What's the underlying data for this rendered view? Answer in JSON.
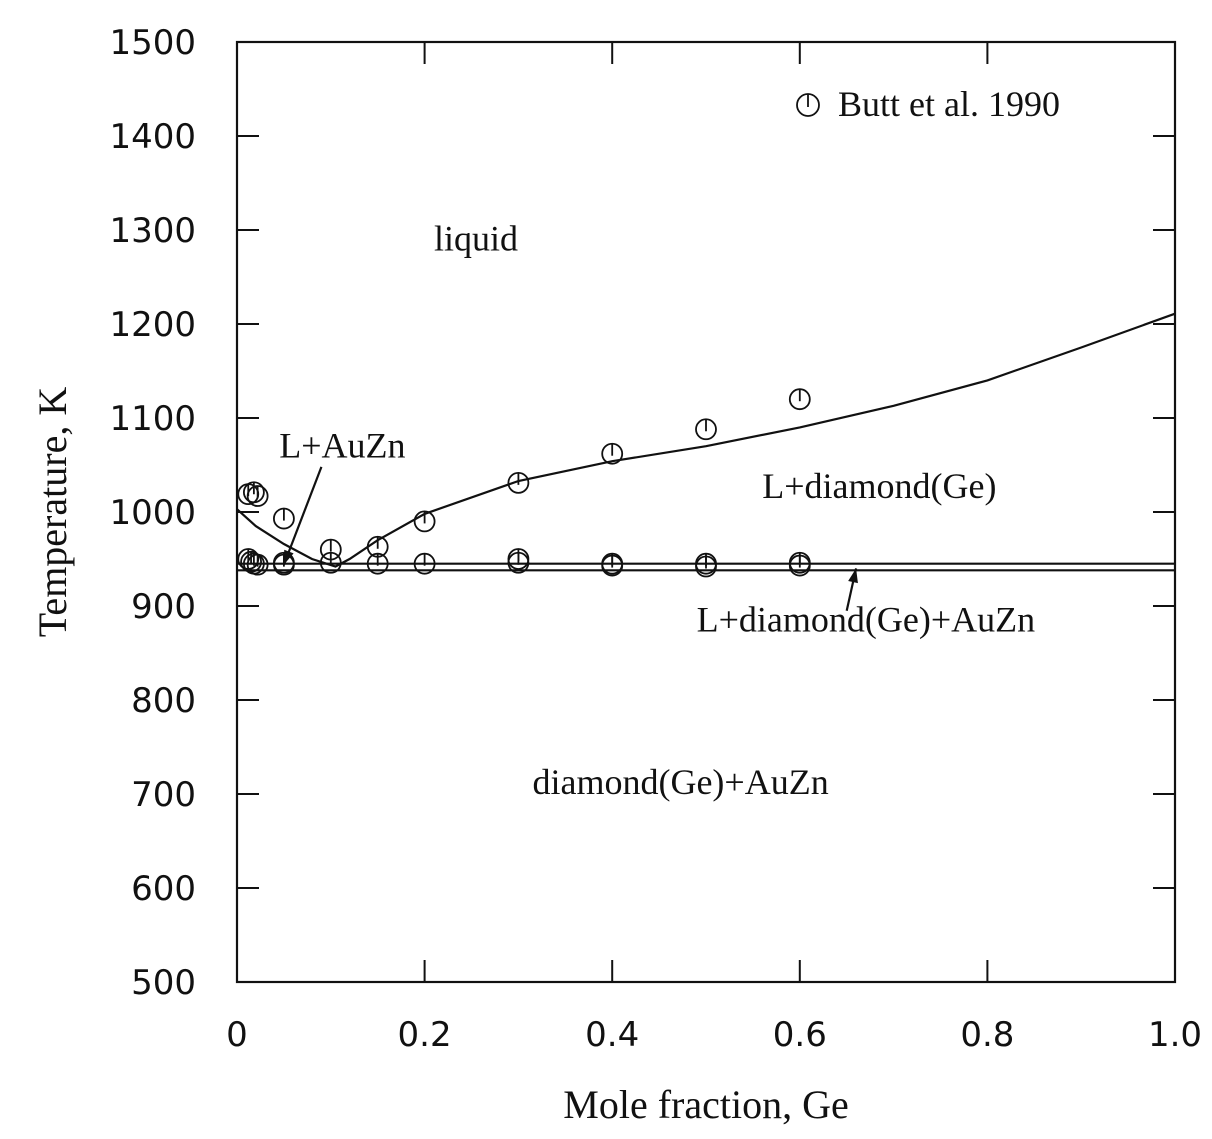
{
  "chart_data": {
    "type": "line",
    "xlabel": "Mole fraction, Ge",
    "ylabel": "Temperature, K",
    "xlim": [
      0,
      1.0
    ],
    "ylim": [
      500,
      1500
    ],
    "x_ticks": [
      0,
      0.2,
      0.4,
      0.6,
      0.8,
      1.0
    ],
    "x_tick_labels": [
      "0",
      "0.2",
      "0.4",
      "0.6",
      "0.8",
      "1.0"
    ],
    "y_ticks": [
      500,
      600,
      700,
      800,
      900,
      1000,
      1100,
      1200,
      1300,
      1400,
      1500
    ],
    "y_tick_labels": [
      "500",
      "600",
      "700",
      "800",
      "900",
      "1000",
      "1100",
      "1200",
      "1300",
      "1400",
      "1500"
    ],
    "grid": false,
    "legend": {
      "position": "top-right",
      "entries": [
        {
          "marker": "circle-tick",
          "label": "Butt et al. 1990"
        }
      ]
    },
    "series": [
      {
        "style": "line",
        "x": [
          0.0,
          0.02,
          0.05,
          0.08,
          0.105,
          0.12,
          0.15,
          0.2,
          0.3,
          0.4,
          0.5,
          0.6,
          0.7,
          0.8,
          0.9,
          1.0
        ],
        "y": [
          1003,
          985,
          966,
          950,
          942,
          950,
          970,
          998,
          1033,
          1054,
          1070,
          1090,
          1113,
          1140,
          1175,
          1211
        ]
      },
      {
        "style": "line",
        "x": [
          0.0,
          1.0
        ],
        "y": [
          945,
          945
        ]
      },
      {
        "style": "line",
        "x": [
          0.0,
          1.0
        ],
        "y": [
          938,
          938
        ]
      },
      {
        "name": "Butt et al. 1990",
        "style": "markers",
        "marker": "circle-tick",
        "points": [
          [
            0.012,
            1019
          ],
          [
            0.018,
            1021
          ],
          [
            0.022,
            1017
          ],
          [
            0.05,
            993
          ],
          [
            0.1,
            960
          ],
          [
            0.15,
            963
          ],
          [
            0.2,
            990
          ],
          [
            0.3,
            1031
          ],
          [
            0.4,
            1062
          ],
          [
            0.5,
            1088
          ],
          [
            0.6,
            1120
          ],
          [
            0.012,
            950
          ],
          [
            0.015,
            947
          ],
          [
            0.018,
            945
          ],
          [
            0.022,
            944
          ],
          [
            0.05,
            946
          ],
          [
            0.05,
            944
          ],
          [
            0.1,
            946
          ],
          [
            0.15,
            945
          ],
          [
            0.2,
            945
          ],
          [
            0.3,
            950
          ],
          [
            0.3,
            946
          ],
          [
            0.4,
            945
          ],
          [
            0.4,
            943
          ],
          [
            0.5,
            945
          ],
          [
            0.5,
            942
          ],
          [
            0.6,
            946
          ],
          [
            0.6,
            943
          ]
        ]
      }
    ],
    "annotations": [
      {
        "text": "liquid",
        "x": 0.21,
        "y": 1278
      },
      {
        "text": "L+AuZn",
        "x": 0.045,
        "y": 1058
      },
      {
        "text": "L+diamond(Ge)",
        "x": 0.56,
        "y": 1015
      },
      {
        "text": "L+diamond(Ge)+AuZn",
        "x": 0.49,
        "y": 873
      },
      {
        "text": "diamond(Ge)+AuZn",
        "x": 0.315,
        "y": 700
      }
    ],
    "arrows": [
      {
        "from": [
          0.09,
          1048
        ],
        "to": [
          0.05,
          944
        ]
      },
      {
        "from": [
          0.65,
          895
        ],
        "to": [
          0.66,
          940
        ]
      }
    ]
  }
}
